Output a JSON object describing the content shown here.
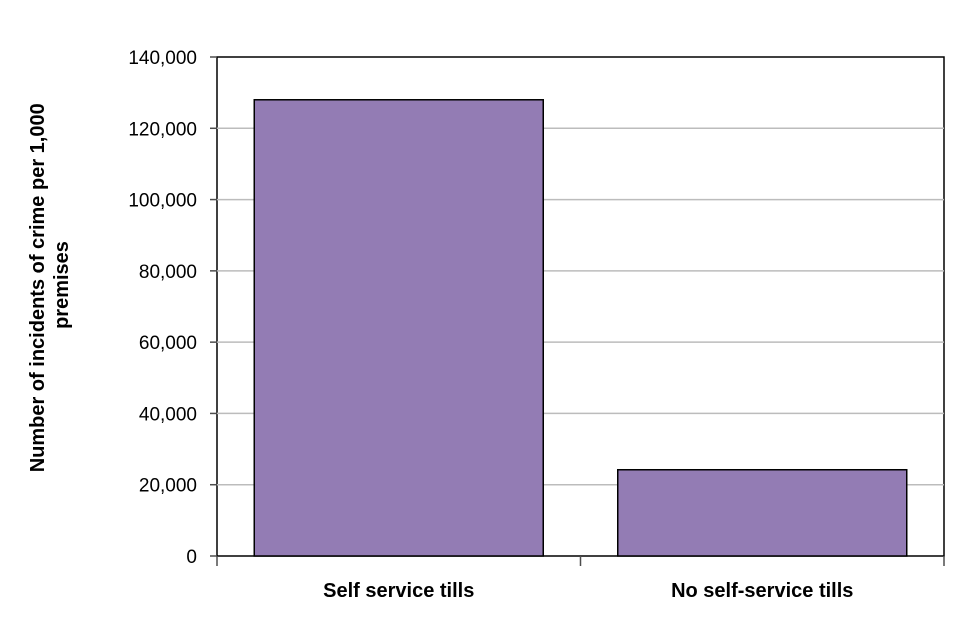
{
  "chart_data": {
    "type": "bar",
    "categories": [
      "Self service tills",
      "No self-service tills"
    ],
    "values": [
      128000,
      24200
    ],
    "title": "",
    "xlabel": "",
    "ylabel_lines": [
      "Number of incidents of crime per 1,000",
      "premises"
    ],
    "ylim": [
      0,
      140000
    ],
    "yticks": [
      0,
      20000,
      40000,
      60000,
      80000,
      100000,
      120000,
      140000
    ],
    "ytick_labels": [
      "0",
      "20,000",
      "40,000",
      "60,000",
      "80,000",
      "100,000",
      "120,000",
      "140,000"
    ],
    "grid": true,
    "legend": "none",
    "colors": {
      "bar": "#937cb4",
      "bar_outline": "#000000",
      "grid": "#bcbcbc",
      "axis": "#4d4d4d"
    }
  }
}
